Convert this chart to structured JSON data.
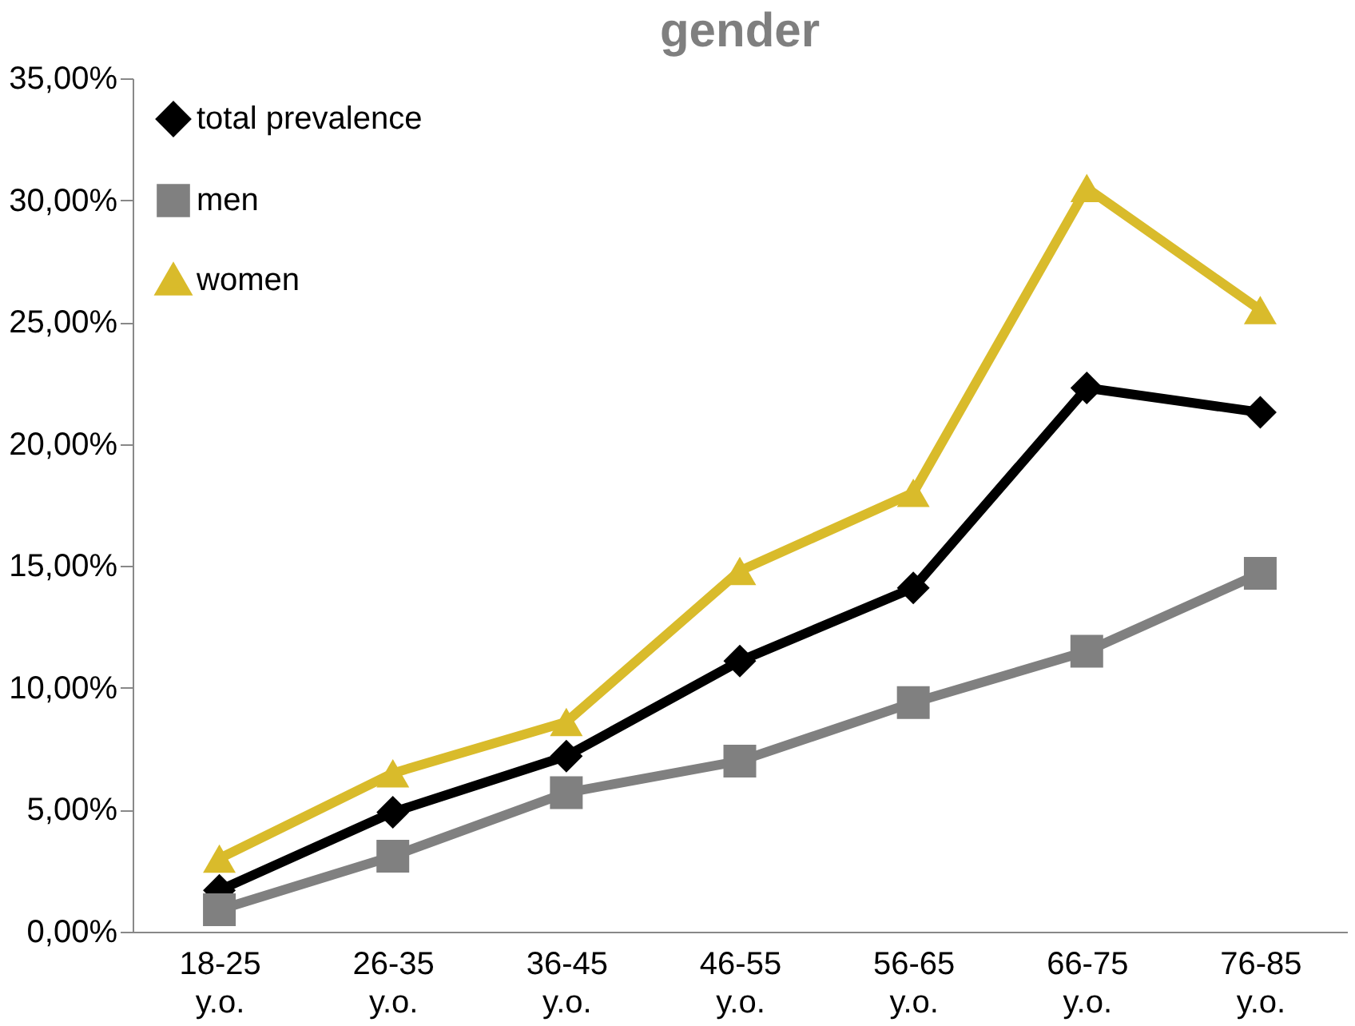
{
  "chart_data": {
    "type": "line",
    "title": "gender",
    "categories": [
      "18-25 y.o.",
      "26-35 y.o.",
      "36-45 y.o.",
      "46-55 y.o.",
      "56-65 y.o.",
      "66-75 y.o.",
      "76-85 y.o."
    ],
    "series": [
      {
        "name": "total prevalence",
        "color": "#000000",
        "marker": "diamond",
        "values": [
          1.7,
          4.9,
          7.2,
          11.1,
          14.1,
          22.3,
          21.3
        ]
      },
      {
        "name": "men",
        "color": "#808080",
        "marker": "square",
        "values": [
          0.9,
          3.1,
          5.7,
          7.0,
          9.4,
          11.5,
          14.7
        ]
      },
      {
        "name": "women",
        "color": "#d9bb2b",
        "marker": "triangle",
        "values": [
          3.0,
          6.5,
          8.6,
          14.8,
          18.0,
          30.5,
          25.5
        ]
      }
    ],
    "ylim": [
      0,
      35
    ],
    "yticks": [
      {
        "value": 0,
        "label": "0,00%"
      },
      {
        "value": 5,
        "label": "5,00%"
      },
      {
        "value": 10,
        "label": "10,00%"
      },
      {
        "value": 15,
        "label": "15,00%"
      },
      {
        "value": 20,
        "label": "20,00%"
      },
      {
        "value": 25,
        "label": "25,00%"
      },
      {
        "value": 30,
        "label": "30,00%"
      },
      {
        "value": 35,
        "label": "35,00%"
      }
    ],
    "grid": false,
    "legend": "top left",
    "line_style": "solid"
  }
}
